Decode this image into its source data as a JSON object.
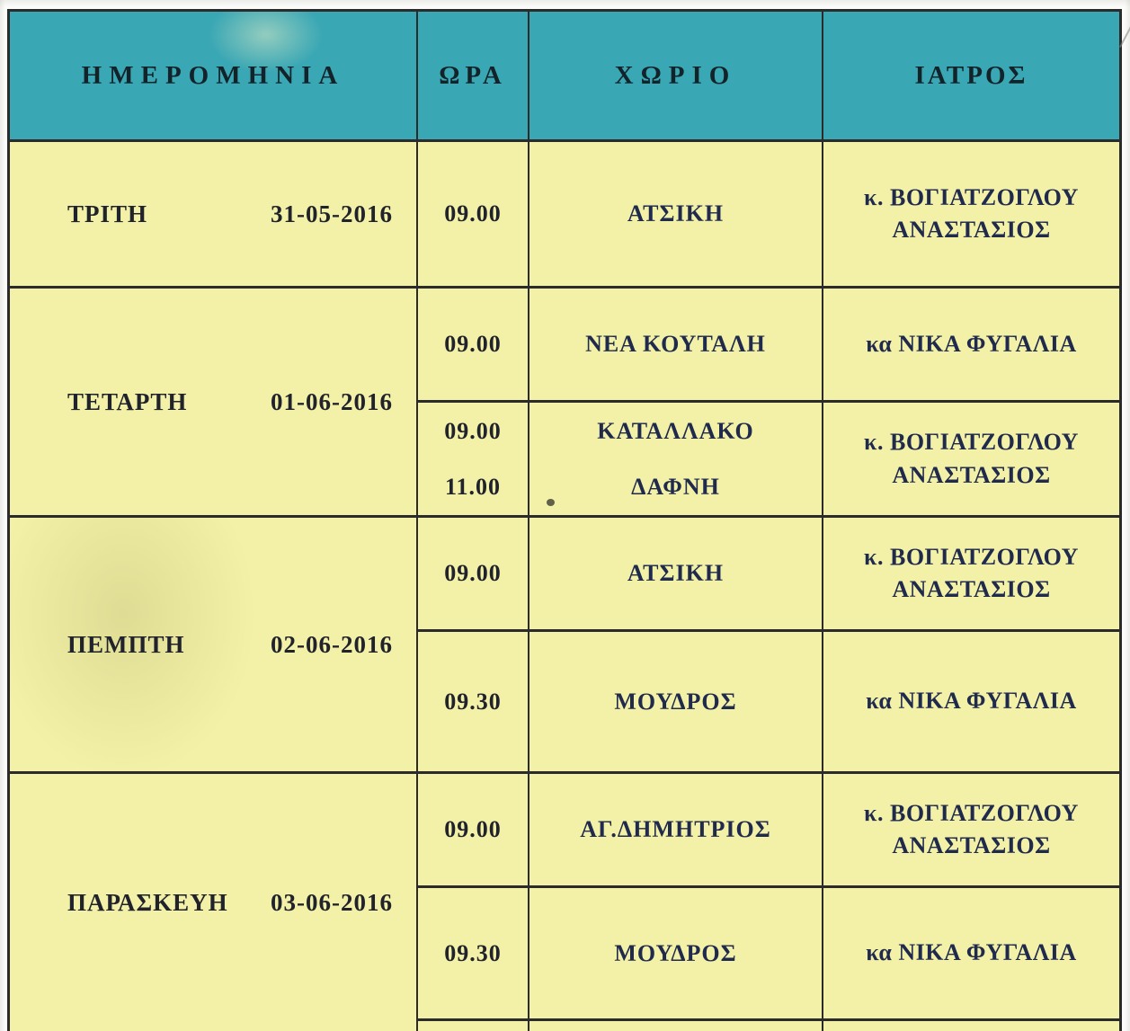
{
  "document": {
    "type": "scanned-schedule-table",
    "colors": {
      "header_teal": "#3aa7b4",
      "cell_yellow": "#f3f1a7",
      "border_dark": "#2b2b2b",
      "text_dark": "#20222c",
      "text_navy": "#1f2a4d"
    },
    "headers": {
      "date": "ΗΜΕΡΟΜΗΝΙΑ",
      "time": "ΩΡΑ",
      "village": "ΧΩΡΙΟ",
      "doctor": "ΙΑΤΡΟΣ"
    },
    "rows": [
      {
        "day": "ΤΡΙΤΗ",
        "date": "31-05-2016",
        "slots": [
          {
            "times": [
              "09.00"
            ],
            "villages": [
              "ΑΤΣΙΚΗ"
            ],
            "doctor": "κ. ΒΟΓΙΑΤΖΟΓΛΟΥ ΑΝΑΣΤΑΣΙΟΣ"
          }
        ]
      },
      {
        "day": "ΤΕΤΑΡΤΗ",
        "date": "01-06-2016",
        "slots": [
          {
            "times": [
              "09.00"
            ],
            "villages": [
              "ΝΕΑ ΚΟΥΤΑΛΗ"
            ],
            "doctor": "κα ΝΙΚΑ ΦΥΓΑΛΙΑ"
          },
          {
            "times": [
              "09.00",
              "11.00"
            ],
            "villages": [
              "ΚΑΤΑΛΛΑΚΟ",
              "ΔΑΦΝΗ"
            ],
            "doctor": "κ. ΒΟΓΙΑΤΖΟΓΛΟΥ ΑΝΑΣΤΑΣΙΟΣ"
          }
        ]
      },
      {
        "day": "ΠΕΜΠΤΗ",
        "date": "02-06-2016",
        "slots": [
          {
            "times": [
              "09.00"
            ],
            "villages": [
              "ΑΤΣΙΚΗ"
            ],
            "doctor": "κ. ΒΟΓΙΑΤΖΟΓΛΟΥ ΑΝΑΣΤΑΣΙΟΣ"
          },
          {
            "times": [
              "09.30"
            ],
            "villages": [
              "ΜΟΥΔΡΟΣ"
            ],
            "doctor": "κα ΝΙΚΑ ΦΥΓΑΛΙΑ"
          }
        ]
      },
      {
        "day": "ΠΑΡΑΣΚΕΥΗ",
        "date": "03-06-2016",
        "slots": [
          {
            "times": [
              "09.00"
            ],
            "villages": [
              "ΑΓ.ΔΗΜΗΤΡΙΟΣ"
            ],
            "doctor": "κ. ΒΟΓΙΑΤΖΟΓΛΟΥ ΑΝΑΣΤΑΣΙΟΣ"
          },
          {
            "times": [
              "09.30"
            ],
            "villages": [
              "ΜΟΥΔΡΟΣ"
            ],
            "doctor": "κα ΝΙΚΑ ΦΥΓΑΛΙΑ"
          }
        ]
      }
    ]
  }
}
